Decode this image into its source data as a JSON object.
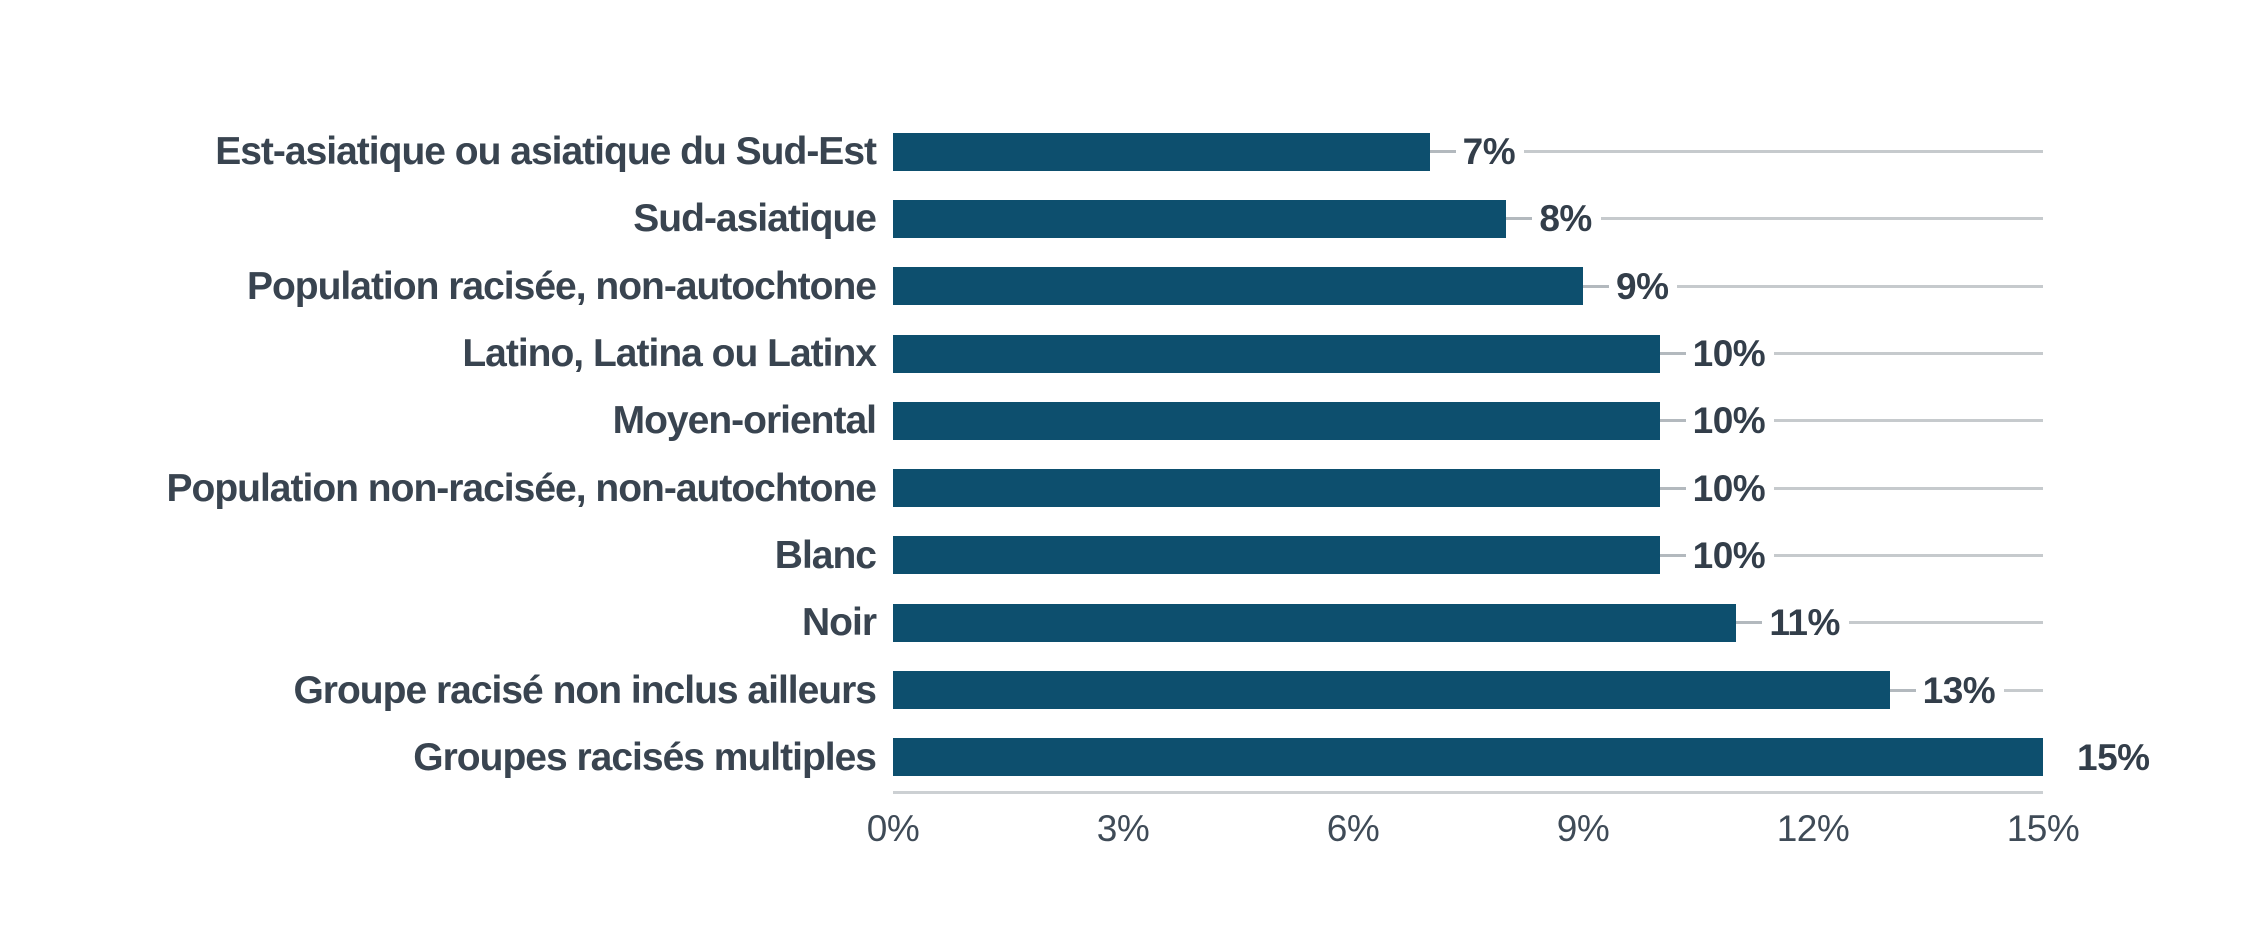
{
  "chart_data": {
    "type": "bar",
    "orientation": "horizontal",
    "title": "",
    "categories": [
      "Est-asiatique ou asiatique du Sud-Est",
      "Sud-asiatique",
      "Population racisée, non-autochtone",
      "Latino, Latina ou Latinx",
      "Moyen-oriental",
      "Population non-racisée, non-autochtone",
      "Blanc",
      "Noir",
      "Groupe racisé non inclus ailleurs",
      "Groupes racisés multiples"
    ],
    "values": [
      7,
      8,
      9,
      10,
      10,
      10,
      10,
      11,
      13,
      15
    ],
    "value_labels": [
      "7%",
      "8%",
      "9%",
      "10%",
      "10%",
      "10%",
      "10%",
      "11%",
      "13%",
      "15%"
    ],
    "xlabel": "",
    "ylabel": "",
    "xlim": [
      0,
      15
    ],
    "x_ticks": [
      "0%",
      "3%",
      "6%",
      "9%",
      "12%",
      "15%"
    ],
    "x_tick_values": [
      0,
      3,
      6,
      9,
      12,
      15
    ],
    "grid": "right-of-bar leader lines to plot edge, bottom axis line only",
    "legend": null,
    "colors": {
      "bar": "#0d4f6e",
      "category_label": "#394450",
      "value_label": "#333e4a",
      "tick_label": "#3f4b57",
      "leader_line": "#b3b9be",
      "grid_line": "#c6cacd",
      "axis_line": "#ccd0d3",
      "background": "#ffffff"
    }
  }
}
